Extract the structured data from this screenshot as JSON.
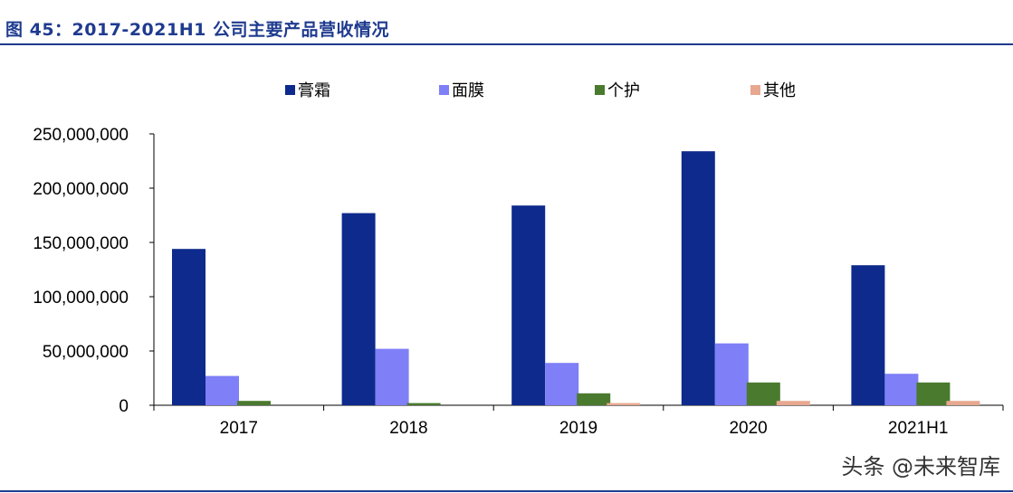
{
  "figure": {
    "title": "图 45：2017-2021H1 公司主要产品营收情况"
  },
  "watermark": "头条 @未来智库",
  "chart_data": {
    "type": "bar",
    "categories": [
      "2017",
      "2018",
      "2019",
      "2020",
      "2021H1"
    ],
    "series": [
      {
        "name": "膏霜",
        "color": "#0d2a8c",
        "values": [
          144000000,
          177000000,
          184000000,
          234000000,
          129000000
        ]
      },
      {
        "name": "面膜",
        "color": "#7f7ff7",
        "values": [
          27000000,
          52000000,
          39000000,
          57000000,
          29000000
        ]
      },
      {
        "name": "个护",
        "color": "#4a7a2e",
        "values": [
          4000000,
          2000000,
          11000000,
          21000000,
          21000000
        ]
      },
      {
        "name": "其他",
        "color": "#e8a890",
        "values": [
          0,
          0,
          2000000,
          4000000,
          4000000
        ]
      }
    ],
    "yticks": [
      "0",
      "50,000,000",
      "100,000,000",
      "150,000,000",
      "200,000,000",
      "250,000,000"
    ],
    "ylim": [
      0,
      250000000
    ],
    "legend_position": "top",
    "grid": false
  }
}
